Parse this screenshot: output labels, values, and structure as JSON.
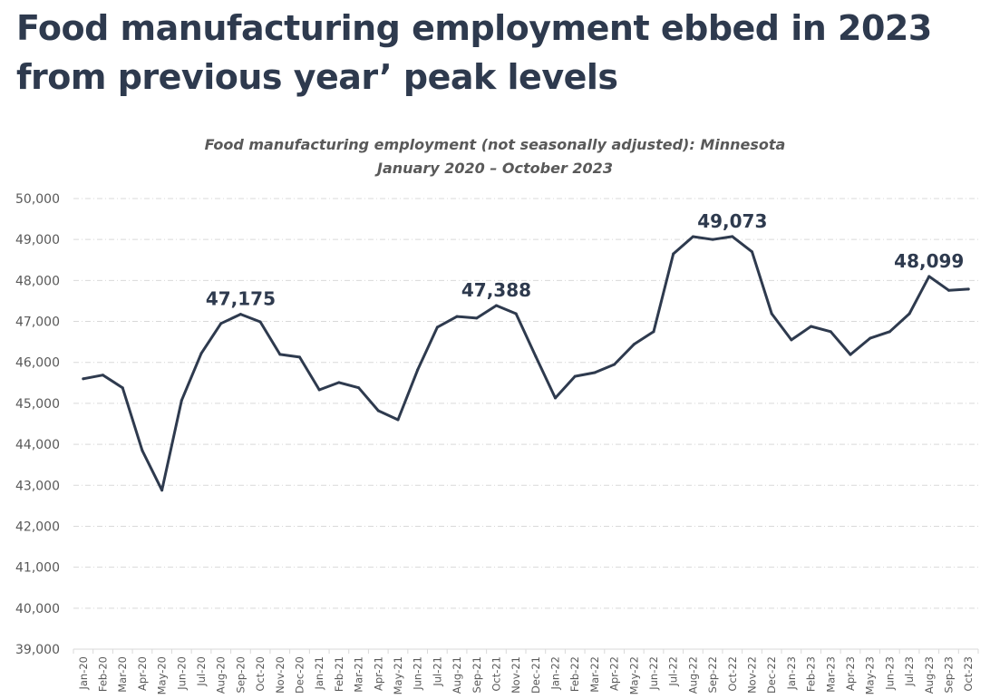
{
  "headline": "Food manufacturing employment ebbed in 2023 from previous year’ peak levels",
  "chart_data": {
    "type": "line",
    "title": "Food manufacturing employment (not seasonally adjusted): Minnesota",
    "subtitle": "January 2020 – October 2023",
    "xlabel": "",
    "ylabel": "",
    "ylim": [
      39000,
      50000
    ],
    "yticks": [
      39000,
      40000,
      41000,
      42000,
      43000,
      44000,
      45000,
      46000,
      47000,
      48000,
      49000,
      50000
    ],
    "ytick_labels": [
      "39,000",
      "40,000",
      "41,000",
      "42,000",
      "43,000",
      "44,000",
      "45,000",
      "46,000",
      "47,000",
      "48,000",
      "49,000",
      "50,000"
    ],
    "grid": true,
    "legend": "none",
    "line_color": "#2e3a4e",
    "categories": [
      "Jan-20",
      "Feb-20",
      "Mar-20",
      "Apr-20",
      "May-20",
      "Jun-20",
      "Jul-20",
      "Aug-20",
      "Sep-20",
      "Oct-20",
      "Nov-20",
      "Dec-20",
      "Jan-21",
      "Feb-21",
      "Mar-21",
      "Apr-21",
      "May-21",
      "Jun-21",
      "Jul-21",
      "Aug-21",
      "Sep-21",
      "Oct-21",
      "Nov-21",
      "Dec-21",
      "Jan-22",
      "Feb-22",
      "Mar-22",
      "Apr-22",
      "May-22",
      "Jun-22",
      "Jul-22",
      "Aug-22",
      "Sep-22",
      "Oct-22",
      "Nov-22",
      "Dec-22",
      "Jan-23",
      "Feb-23",
      "Mar-23",
      "Apr-23",
      "May-23",
      "Jun-23",
      "Jul-23",
      "Aug-23",
      "Sep-23",
      "Oct-23"
    ],
    "series": [
      {
        "name": "Food manufacturing employment",
        "values": [
          45600,
          45690,
          45380,
          43850,
          42880,
          45070,
          46220,
          46950,
          47175,
          46990,
          46195,
          46130,
          45330,
          45510,
          45380,
          44820,
          44600,
          45820,
          46860,
          47120,
          47080,
          47388,
          47190,
          46150,
          45130,
          45660,
          45750,
          45950,
          46440,
          46750,
          48650,
          49070,
          49000,
          49073,
          48700,
          47190,
          46550,
          46880,
          46750,
          46190,
          46590,
          46750,
          47190,
          48099,
          47760,
          47790
        ]
      }
    ],
    "annotations": [
      {
        "category": "Sep-20",
        "value": 47175,
        "label": "47,175"
      },
      {
        "category": "Oct-21",
        "value": 47388,
        "label": "47,388"
      },
      {
        "category": "Oct-22",
        "value": 49073,
        "label": "49,073"
      },
      {
        "category": "Aug-23",
        "value": 48099,
        "label": "48,099"
      }
    ]
  }
}
